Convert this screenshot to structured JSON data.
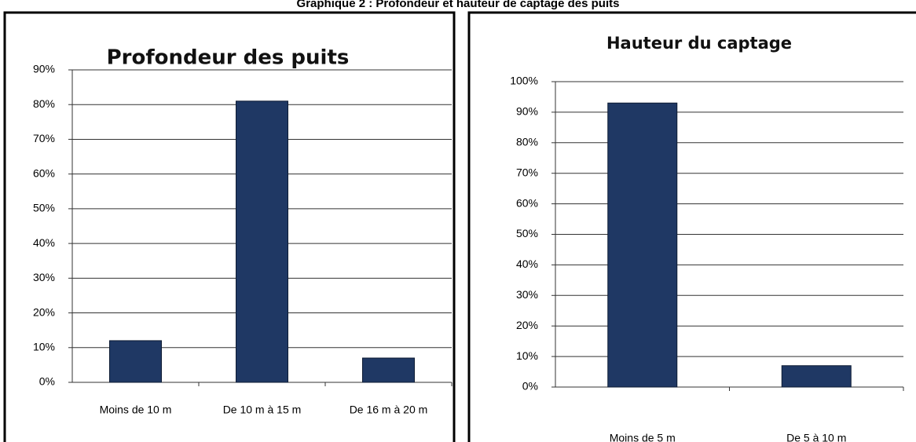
{
  "caption": "Graphique 2 : Profondeur et hauteur de captage des puits",
  "chart_data": [
    {
      "type": "bar",
      "title": "Profondeur des puits",
      "categories": [
        "Moins de 10 m",
        "De 10 m à 15 m",
        "De 16 m à 20 m"
      ],
      "values": [
        12,
        81,
        7
      ],
      "color": "#1f3864",
      "ylim": [
        0,
        90
      ],
      "yticks": [
        {
          "value": 0,
          "label": "0%"
        },
        {
          "value": 10,
          "label": "10%"
        },
        {
          "value": 20,
          "label": "20%"
        },
        {
          "value": 30,
          "label": "30%"
        },
        {
          "value": 40,
          "label": "40%"
        },
        {
          "value": 50,
          "label": "50%"
        },
        {
          "value": 60,
          "label": "60%"
        },
        {
          "value": 70,
          "label": "70%"
        },
        {
          "value": 80,
          "label": "80%"
        },
        {
          "value": 90,
          "label": "90%"
        }
      ],
      "grid": true
    },
    {
      "type": "bar",
      "title": "Hauteur du captage",
      "categories": [
        "Moins de 5 m",
        "De 5 à 10 m"
      ],
      "values": [
        93,
        7
      ],
      "color": "#1f3864",
      "ylim": [
        0,
        100
      ],
      "yticks": [
        {
          "value": 0,
          "label": "0%"
        },
        {
          "value": 10,
          "label": "10%"
        },
        {
          "value": 20,
          "label": "20%"
        },
        {
          "value": 30,
          "label": "30%"
        },
        {
          "value": 40,
          "label": "40%"
        },
        {
          "value": 50,
          "label": "50%"
        },
        {
          "value": 60,
          "label": "60%"
        },
        {
          "value": 70,
          "label": "70%"
        },
        {
          "value": 80,
          "label": "80%"
        },
        {
          "value": 90,
          "label": "90%"
        },
        {
          "value": 100,
          "label": "100%"
        }
      ],
      "grid": true
    }
  ]
}
